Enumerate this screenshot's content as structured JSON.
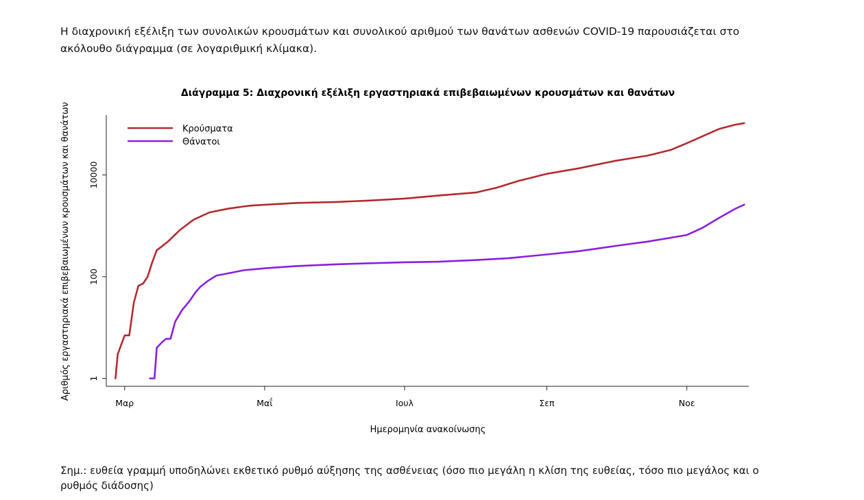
{
  "intro_text": "Η διαχρονική εξέλιξη των συνολικών κρουσμάτων και συνολικού αριθμού των θανάτων ασθενών COVID-19 παρουσιάζεται στο ακόλουθο διάγραμμα (σε λογαριθμική κλίμακα).",
  "note_text": "Σημ.: ευθεία γραμμή υποδηλώνει εκθετικό ρυθμό αύξησης της ασθένειας (όσο πιο μεγάλη η κλίση της ευθείας, τόσο πιο μεγάλος και ο ρυθμός διάδοσης)",
  "chart_data": {
    "type": "line",
    "title": "Διάγραμμα 5: Διαχρονική εξέλιξη εργαστηριακά επιβεβαιωμένων κρουσμάτων και θανάτων",
    "xlabel": "Ημερομηνία ανακοίνωσης",
    "ylabel": "Αριθμός εργαστηριακά επιβεβαιωμένων κρουσμάτων και θανάτων",
    "y_scale": "log",
    "ylim": [
      0.7,
      150000
    ],
    "xlim": [
      "2020-02-22",
      "2020-11-28"
    ],
    "x_ticks": [
      {
        "date": "2020-03-01",
        "label": "Μαρ"
      },
      {
        "date": "2020-05-01",
        "label": "Μαΐ"
      },
      {
        "date": "2020-07-01",
        "label": "Ιουλ"
      },
      {
        "date": "2020-09-01",
        "label": "Σεπ"
      },
      {
        "date": "2020-11-01",
        "label": "Νοε"
      }
    ],
    "y_ticks": [
      {
        "value": 1,
        "label": "1"
      },
      {
        "value": 100,
        "label": "100"
      },
      {
        "value": 10000,
        "label": "10000"
      }
    ],
    "legend_position": "top-left",
    "series": [
      {
        "name": "Κρούσματα",
        "color": "#b22a2f",
        "points": [
          [
            "2020-02-26",
            1
          ],
          [
            "2020-02-27",
            3
          ],
          [
            "2020-02-28",
            4
          ],
          [
            "2020-03-01",
            7
          ],
          [
            "2020-03-03",
            7
          ],
          [
            "2020-03-05",
            31
          ],
          [
            "2020-03-07",
            66
          ],
          [
            "2020-03-09",
            73
          ],
          [
            "2020-03-11",
            99
          ],
          [
            "2020-03-13",
            190
          ],
          [
            "2020-03-15",
            331
          ],
          [
            "2020-03-17",
            387
          ],
          [
            "2020-03-20",
            495
          ],
          [
            "2020-03-25",
            821
          ],
          [
            "2020-03-31",
            1314
          ],
          [
            "2020-04-07",
            1832
          ],
          [
            "2020-04-15",
            2170
          ],
          [
            "2020-04-22",
            2401
          ],
          [
            "2020-04-25",
            2490
          ],
          [
            "2020-05-01",
            2591
          ],
          [
            "2020-05-15",
            2810
          ],
          [
            "2020-06-01",
            2937
          ],
          [
            "2020-06-15",
            3121
          ],
          [
            "2020-07-01",
            3432
          ],
          [
            "2020-07-15",
            3900
          ],
          [
            "2020-08-01",
            4500
          ],
          [
            "2020-08-10",
            5600
          ],
          [
            "2020-08-20",
            7700
          ],
          [
            "2020-09-01",
            10500
          ],
          [
            "2020-09-15",
            13500
          ],
          [
            "2020-10-01",
            19000
          ],
          [
            "2020-10-15",
            24000
          ],
          [
            "2020-10-25",
            31000
          ],
          [
            "2020-11-01",
            42000
          ],
          [
            "2020-11-08",
            58000
          ],
          [
            "2020-11-15",
            80000
          ],
          [
            "2020-11-22",
            97000
          ],
          [
            "2020-11-26",
            104000
          ]
        ]
      },
      {
        "name": "Θάνατοι",
        "color": "#8a1ee0",
        "points": [
          [
            "2020-03-12",
            1
          ],
          [
            "2020-03-14",
            1
          ],
          [
            "2020-03-15",
            4
          ],
          [
            "2020-03-17",
            5
          ],
          [
            "2020-03-19",
            6
          ],
          [
            "2020-03-21",
            6
          ],
          [
            "2020-03-23",
            13
          ],
          [
            "2020-03-26",
            22
          ],
          [
            "2020-03-29",
            32
          ],
          [
            "2020-04-01",
            50
          ],
          [
            "2020-04-03",
            63
          ],
          [
            "2020-04-06",
            81
          ],
          [
            "2020-04-10",
            105
          ],
          [
            "2020-04-15",
            116
          ],
          [
            "2020-04-22",
            134
          ],
          [
            "2020-05-01",
            146
          ],
          [
            "2020-05-15",
            162
          ],
          [
            "2020-06-01",
            175
          ],
          [
            "2020-06-15",
            183
          ],
          [
            "2020-07-01",
            192
          ],
          [
            "2020-07-15",
            196
          ],
          [
            "2020-08-01",
            212
          ],
          [
            "2020-08-15",
            230
          ],
          [
            "2020-09-01",
            273
          ],
          [
            "2020-09-15",
            317
          ],
          [
            "2020-10-01",
            402
          ],
          [
            "2020-10-15",
            490
          ],
          [
            "2020-11-01",
            660
          ],
          [
            "2020-11-08",
            920
          ],
          [
            "2020-11-15",
            1420
          ],
          [
            "2020-11-22",
            2150
          ],
          [
            "2020-11-26",
            2600
          ]
        ]
      }
    ]
  }
}
